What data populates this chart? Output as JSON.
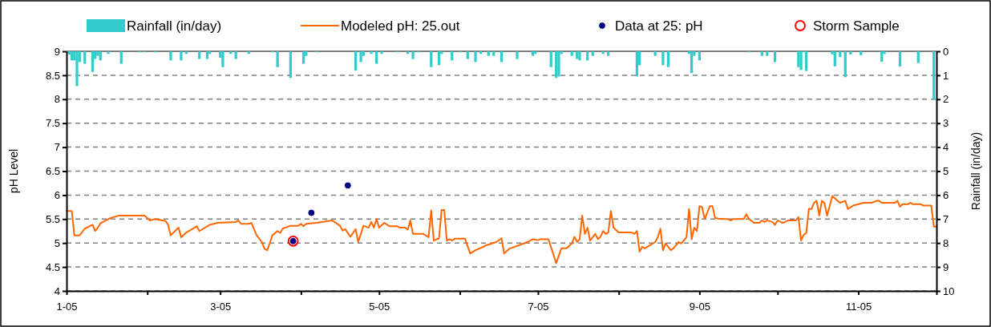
{
  "chart_data": {
    "type": "line",
    "xlim": [
      "2005-01-01",
      "2005-12-01"
    ],
    "xticks": [
      {
        "value": "2005-01-01",
        "label": "1-05"
      },
      {
        "value": "2005-02-01",
        "label": null
      },
      {
        "value": "2005-03-01",
        "label": "3-05"
      },
      {
        "value": "2005-04-01",
        "label": null
      },
      {
        "value": "2005-05-01",
        "label": "5-05"
      },
      {
        "value": "2005-06-01",
        "label": null
      },
      {
        "value": "2005-07-01",
        "label": "7-05"
      },
      {
        "value": "2005-08-01",
        "label": null
      },
      {
        "value": "2005-09-01",
        "label": "9-05"
      },
      {
        "value": "2005-10-01",
        "label": null
      },
      {
        "value": "2005-11-01",
        "label": "11-05"
      },
      {
        "value": "2005-12-01",
        "label": null
      }
    ],
    "ylim": [
      4,
      9
    ],
    "yticks": [
      4,
      4.5,
      5,
      5.5,
      6,
      6.5,
      7,
      7.5,
      8,
      8.5,
      9
    ],
    "y2lim": [
      10,
      0
    ],
    "y2ticks": [
      0,
      1,
      2,
      3,
      4,
      5,
      6,
      7,
      8,
      9,
      10
    ],
    "ylabel": "pH Level",
    "y2label": "Rainfall (in/day)",
    "grid": "y",
    "legend": "top",
    "series": [
      {
        "name": "Rainfall (in/day)",
        "type": "bar",
        "axis": "y2",
        "color": "#33cccc",
        "x": [
          "2005-01-02",
          "2005-01-03",
          "2005-01-04",
          "2005-01-05",
          "2005-01-06",
          "2005-01-08",
          "2005-01-11",
          "2005-01-12",
          "2005-01-13",
          "2005-01-14",
          "2005-01-17",
          "2005-01-22",
          "2005-01-29",
          "2005-01-31",
          "2005-02-04",
          "2005-02-10",
          "2005-02-14",
          "2005-02-16",
          "2005-02-21",
          "2005-02-24",
          "2005-02-25",
          "2005-03-01",
          "2005-03-02",
          "2005-03-05",
          "2005-03-07",
          "2005-03-12",
          "2005-03-21",
          "2005-03-23",
          "2005-03-28",
          "2005-04-02",
          "2005-04-03",
          "2005-04-07",
          "2005-04-22",
          "2005-04-24",
          "2005-04-25",
          "2005-04-28",
          "2005-04-30",
          "2005-05-02",
          "2005-05-08",
          "2005-05-12",
          "2005-05-14",
          "2005-05-16",
          "2005-05-21",
          "2005-05-24",
          "2005-05-25",
          "2005-05-29",
          "2005-06-01",
          "2005-06-04",
          "2005-06-07",
          "2005-06-09",
          "2005-06-12",
          "2005-06-14",
          "2005-06-17",
          "2005-06-23",
          "2005-06-29",
          "2005-06-30",
          "2005-07-06",
          "2005-07-08",
          "2005-07-09",
          "2005-07-10",
          "2005-07-14",
          "2005-07-16",
          "2005-07-17",
          "2005-07-20",
          "2005-07-22",
          "2005-07-26",
          "2005-07-28",
          "2005-08-08",
          "2005-08-09",
          "2005-08-15",
          "2005-08-18",
          "2005-08-20",
          "2005-08-28",
          "2005-08-29",
          "2005-08-30",
          "2005-09-01",
          "2005-09-20",
          "2005-09-25",
          "2005-09-27",
          "2005-09-30",
          "2005-10-09",
          "2005-10-10",
          "2005-10-11",
          "2005-10-12",
          "2005-10-22",
          "2005-10-23",
          "2005-10-25",
          "2005-10-27",
          "2005-10-29",
          "2005-11-02",
          "2005-11-10",
          "2005-11-11",
          "2005-11-17",
          "2005-11-24",
          "2005-11-30"
        ],
        "values": [
          0.13,
          0.38,
          0.38,
          1.45,
          0.45,
          0.52,
          0.86,
          0.32,
          0.19,
          0.38,
          0.11,
          0.52,
          0.04,
          0.04,
          0.04,
          0.38,
          0.38,
          0.11,
          0.32,
          0.32,
          0.11,
          0.27,
          0.66,
          0.11,
          0.32,
          0.11,
          0.04,
          0.66,
          1.11,
          0.52,
          0.19,
          0.04,
          0.8,
          0.45,
          0.19,
          0.11,
          0.52,
          0.11,
          0.04,
          0.11,
          0.32,
          0.04,
          0.66,
          0.58,
          0.11,
          0.38,
          0.04,
          0.32,
          0.45,
          0.11,
          0.19,
          0.19,
          0.45,
          0.32,
          0.19,
          0.11,
          0.66,
          1.11,
          1.05,
          0.11,
          0.19,
          0.32,
          0.38,
          0.38,
          0.19,
          0.11,
          0.19,
          1.05,
          0.58,
          0.19,
          0.58,
          0.66,
          0.11,
          0.91,
          0.19,
          0.38,
          0.04,
          0.19,
          0.19,
          0.45,
          0.66,
          0.78,
          0.04,
          0.82,
          0.13,
          0.63,
          0.24,
          1.08,
          0.13,
          0.16,
          0.44,
          0.11,
          0.63,
          0.49,
          2.02
        ]
      },
      {
        "name": "Modeled pH: 25.out",
        "color": "#ff6600",
        "marker": "none",
        "x": [
          "2005-01-01",
          "2005-01-03",
          "2005-01-04",
          "2005-01-06",
          "2005-01-08",
          "2005-01-11",
          "2005-01-12",
          "2005-01-13",
          "2005-01-14",
          "2005-01-17",
          "2005-01-19",
          "2005-01-21",
          "2005-01-31",
          "2005-02-02",
          "2005-02-04",
          "2005-02-08",
          "2005-02-09",
          "2005-02-10",
          "2005-02-13",
          "2005-02-14",
          "2005-02-16",
          "2005-02-20",
          "2005-02-21",
          "2005-02-25",
          "2005-02-28",
          "2005-03-07",
          "2005-03-08",
          "2005-03-09",
          "2005-03-12",
          "2005-03-13",
          "2005-03-15",
          "2005-03-17",
          "2005-03-18",
          "2005-03-19",
          "2005-03-20",
          "2005-03-21",
          "2005-03-23",
          "2005-03-24",
          "2005-03-25",
          "2005-03-28",
          "2005-03-31",
          "2005-04-01",
          "2005-04-02",
          "2005-04-03",
          "2005-04-07",
          "2005-04-13",
          "2005-04-16",
          "2005-04-17",
          "2005-04-18",
          "2005-04-20",
          "2005-04-22",
          "2005-04-23",
          "2005-04-25",
          "2005-04-27",
          "2005-04-28",
          "2005-04-29",
          "2005-04-30",
          "2005-05-01",
          "2005-05-03",
          "2005-05-05",
          "2005-05-08",
          "2005-05-09",
          "2005-05-11",
          "2005-05-12",
          "2005-05-13",
          "2005-05-14",
          "2005-05-18",
          "2005-05-20",
          "2005-05-21",
          "2005-05-22",
          "2005-05-24",
          "2005-05-25",
          "2005-05-26",
          "2005-05-27",
          "2005-05-28",
          "2005-05-29",
          "2005-05-30",
          "2005-06-03",
          "2005-06-04",
          "2005-06-05",
          "2005-06-07",
          "2005-06-10",
          "2005-06-11",
          "2005-06-15",
          "2005-06-17",
          "2005-06-18",
          "2005-06-20",
          "2005-06-26",
          "2005-06-27",
          "2005-06-29",
          "2005-07-01",
          "2005-07-02",
          "2005-07-05",
          "2005-07-08",
          "2005-07-10",
          "2005-07-12",
          "2005-07-14",
          "2005-07-15",
          "2005-07-16",
          "2005-07-17",
          "2005-07-18",
          "2005-07-19",
          "2005-07-20",
          "2005-07-21",
          "2005-07-23",
          "2005-07-24",
          "2005-07-25",
          "2005-07-26",
          "2005-07-27",
          "2005-07-28",
          "2005-07-29",
          "2005-07-30",
          "2005-08-01",
          "2005-08-06",
          "2005-08-07",
          "2005-08-08",
          "2005-08-09",
          "2005-08-10",
          "2005-08-11",
          "2005-08-15",
          "2005-08-16",
          "2005-08-17",
          "2005-08-18",
          "2005-08-19",
          "2005-08-21",
          "2005-08-22",
          "2005-08-24",
          "2005-08-25",
          "2005-08-27",
          "2005-08-28",
          "2005-08-29",
          "2005-08-30",
          "2005-08-31",
          "2005-09-01",
          "2005-09-02",
          "2005-09-03",
          "2005-09-05",
          "2005-09-06",
          "2005-09-07",
          "2005-09-09",
          "2005-09-12",
          "2005-09-13",
          "2005-09-14",
          "2005-09-18",
          "2005-09-19",
          "2005-09-20",
          "2005-09-22",
          "2005-09-24",
          "2005-09-25",
          "2005-09-26",
          "2005-09-27",
          "2005-09-29",
          "2005-09-30",
          "2005-10-01",
          "2005-10-03",
          "2005-10-05",
          "2005-10-08",
          "2005-10-09",
          "2005-10-10",
          "2005-10-11",
          "2005-10-12",
          "2005-10-13",
          "2005-10-14",
          "2005-10-15",
          "2005-10-16",
          "2005-10-17",
          "2005-10-18",
          "2005-10-19",
          "2005-10-20",
          "2005-10-22",
          "2005-10-24",
          "2005-10-25",
          "2005-10-27",
          "2005-10-28",
          "2005-10-30",
          "2005-11-01",
          "2005-11-03",
          "2005-11-06",
          "2005-11-08",
          "2005-11-09",
          "2005-11-10",
          "2005-11-15",
          "2005-11-16",
          "2005-11-17",
          "2005-11-18",
          "2005-11-20",
          "2005-11-21",
          "2005-11-22",
          "2005-11-25",
          "2005-11-26",
          "2005-11-29",
          "2005-11-30",
          "2005-12-01"
        ],
        "values": [
          5.67,
          5.67,
          5.16,
          5.16,
          5.3,
          5.38,
          5.25,
          5.32,
          5.41,
          5.5,
          5.54,
          5.57,
          5.57,
          5.47,
          5.5,
          5.46,
          5.38,
          5.16,
          5.32,
          5.12,
          5.22,
          5.35,
          5.25,
          5.38,
          5.42,
          5.44,
          5.47,
          5.4,
          5.4,
          5.42,
          5.16,
          5.02,
          4.88,
          4.85,
          4.99,
          5.16,
          5.25,
          5.21,
          5.3,
          5.36,
          5.36,
          5.4,
          5.35,
          5.4,
          5.42,
          5.47,
          5.36,
          5.26,
          5.29,
          5.13,
          5.29,
          5.02,
          5.36,
          5.32,
          5.44,
          5.32,
          5.5,
          5.32,
          5.42,
          5.35,
          5.35,
          5.32,
          5.32,
          5.28,
          5.47,
          5.19,
          5.19,
          5.12,
          5.68,
          5.05,
          5.1,
          5.69,
          5.69,
          5.05,
          5.08,
          5.05,
          5.09,
          5.09,
          4.93,
          4.78,
          4.85,
          4.92,
          4.95,
          5.02,
          5.1,
          4.78,
          4.88,
          5,
          5.02,
          5.08,
          5.06,
          5.08,
          5.08,
          4.58,
          4.89,
          4.89,
          4.99,
          5.13,
          5.02,
          5.08,
          5.57,
          5.19,
          5.32,
          5.05,
          5.19,
          5.08,
          5.13,
          5.25,
          5.19,
          5.22,
          5.67,
          5.32,
          5.22,
          5.22,
          5.19,
          5.25,
          4.82,
          4.92,
          4.89,
          5.02,
          5.12,
          5.3,
          4.85,
          4.99,
          4.85,
          4.89,
          5.02,
          4.99,
          5.12,
          5.71,
          5.08,
          5.32,
          5.25,
          5.77,
          5.75,
          5.5,
          5.77,
          5.77,
          5.52,
          5.5,
          5.5,
          5.47,
          5.5,
          5.5,
          5.6,
          5.5,
          5.42,
          5.42,
          5.47,
          5.44,
          5.47,
          5.44,
          5.38,
          5.47,
          5.42,
          5.47,
          5.47,
          5.54,
          5.05,
          5.17,
          5.21,
          5.71,
          5.71,
          5.84,
          5.88,
          5.57,
          5.88,
          5.83,
          5.57,
          5.98,
          5.88,
          5.84,
          5.88,
          5.71,
          5.78,
          5.81,
          5.84,
          5.84,
          5.88,
          5.88,
          5.84,
          5.84,
          5.88,
          5.76,
          5.81,
          5.81,
          5.84,
          5.81,
          5.81,
          5.78,
          5.78,
          5.34,
          5.34
        ]
      },
      {
        "name": "Data at 25: pH",
        "type": "scatter",
        "color": "#000080",
        "marker": "circle",
        "x": [
          "2005-03-29",
          "2005-04-05",
          "2005-04-19"
        ],
        "values": [
          5.04,
          5.63,
          6.2
        ]
      },
      {
        "name": "Storm Sample",
        "type": "scatter",
        "color": "#ff0000",
        "marker": "circle",
        "x": [
          "2005-03-29"
        ],
        "values": [
          5.04
        ]
      }
    ]
  }
}
